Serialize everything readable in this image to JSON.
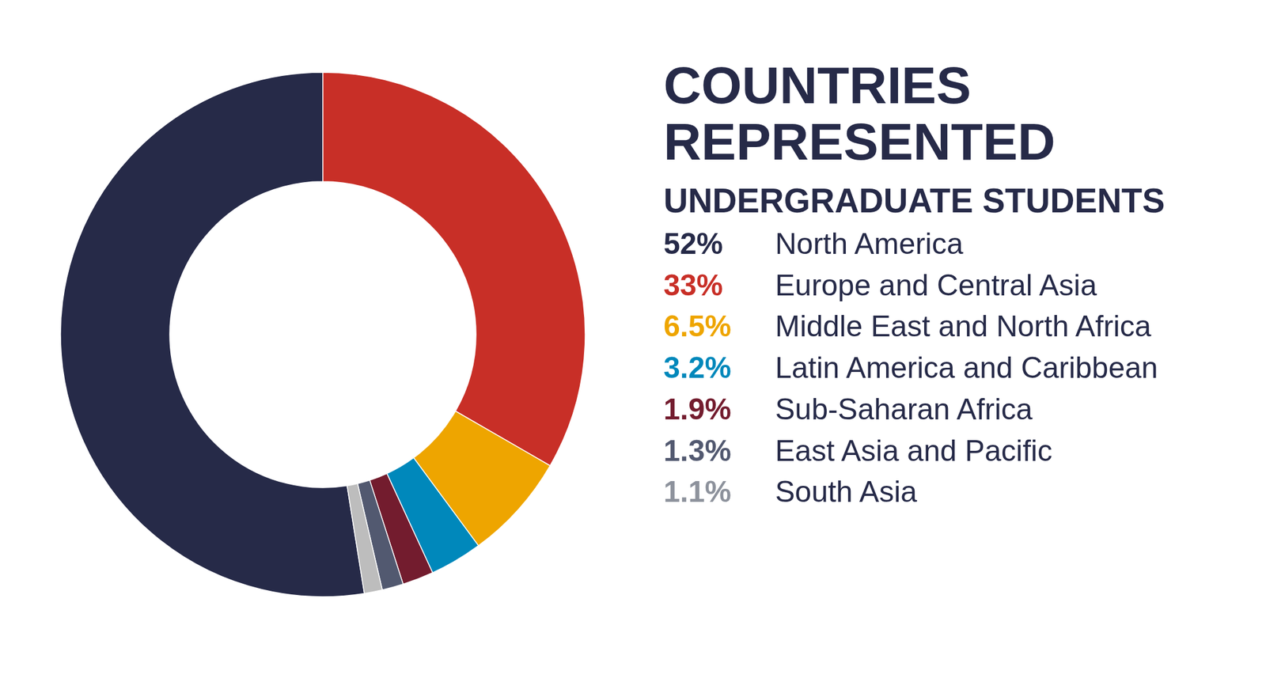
{
  "chart_data": {
    "type": "pie",
    "title": "COUNTRIES REPRESENTED",
    "subtitle": "UNDERGRADUATE STUDENTS",
    "categories": [
      "North America",
      "Europe and Central Asia",
      "Middle East and North Africa",
      "Latin America and Caribbean",
      "Sub-Saharan Africa",
      "East Asia and Pacific",
      "South Asia"
    ],
    "values": [
      52,
      33,
      6.5,
      3.2,
      1.9,
      1.3,
      1.1
    ],
    "value_labels": [
      "52%",
      "33%",
      "6.5%",
      "3.2%",
      "1.9%",
      "1.3%",
      "1.1%"
    ],
    "colors": [
      "#262a48",
      "#c82f27",
      "#eea500",
      "#0088bb",
      "#731c2e",
      "#525970",
      "#bdbdbd"
    ]
  }
}
